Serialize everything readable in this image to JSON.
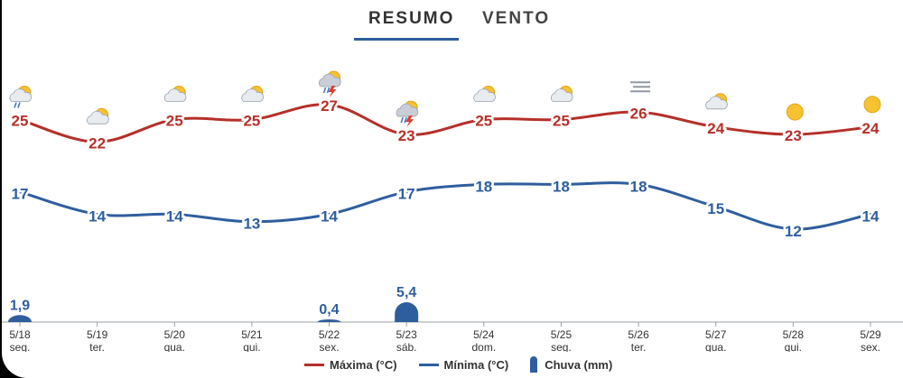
{
  "tabs": [
    {
      "label": "RESUMO",
      "active": true
    },
    {
      "label": "VENTO",
      "active": false
    }
  ],
  "colors": {
    "max": "#b5302a",
    "min": "#2f5e9e",
    "rain": "#2f5e9e"
  },
  "legend": {
    "max_label": "Máxima (°C)",
    "min_label": "Mínima (°C)",
    "rain_label": "Chuva (mm)"
  },
  "chart_data": {
    "type": "line",
    "categories": [
      "5/18",
      "5/19",
      "5/20",
      "5/21",
      "5/22",
      "5/23",
      "5/24",
      "5/25",
      "5/26",
      "5/27",
      "5/28",
      "5/29"
    ],
    "weekdays": [
      "seg.",
      "ter.",
      "qua.",
      "qui.",
      "sex.",
      "sáb.",
      "dom.",
      "seg.",
      "ter.",
      "qua.",
      "qui.",
      "sex."
    ],
    "icons": [
      "rain-cloud-sun-icon",
      "partly-cloudy-icon",
      "partly-cloudy-icon",
      "partly-cloudy-icon",
      "thunderstorm-sun-icon",
      "thunderstorm-sun-icon",
      "partly-cloudy-icon",
      "partly-cloudy-icon",
      "fog-icon",
      "partly-cloudy-icon",
      "sun-icon",
      "sun-icon"
    ],
    "series": [
      {
        "name": "Máxima (°C)",
        "values": [
          25,
          22,
          25,
          25,
          27,
          23,
          25,
          25,
          26,
          24,
          23,
          24
        ]
      },
      {
        "name": "Mínima (°C)",
        "values": [
          17,
          14,
          14,
          13,
          14,
          17,
          18,
          18,
          18,
          15,
          12,
          14
        ]
      },
      {
        "name": "Chuva (mm)",
        "type": "bar",
        "values": [
          1.9,
          null,
          null,
          null,
          0.4,
          5.4,
          null,
          null,
          null,
          null,
          null,
          null
        ],
        "labels": [
          "1,9",
          "",
          "",
          "",
          "0,4",
          "5,4",
          "",
          "",
          "",
          "",
          "",
          ""
        ]
      }
    ]
  }
}
